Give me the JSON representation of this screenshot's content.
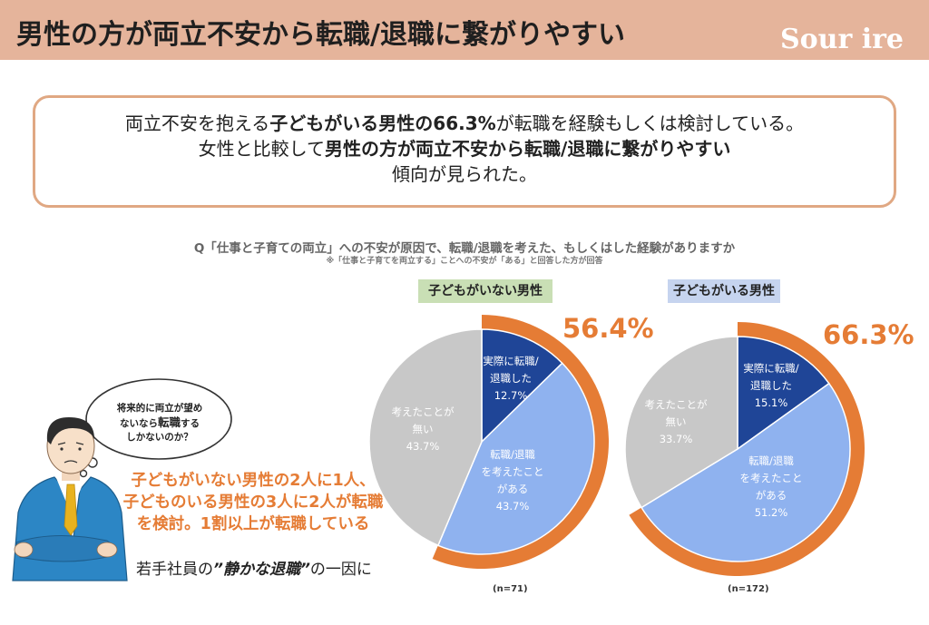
{
  "header": {
    "title": "男性の方が両立不安から転職/退職に繋がりやすい",
    "logo": "Sour ire"
  },
  "summary": {
    "line1": [
      {
        "text": "両立不安を抱える",
        "bold": false
      },
      {
        "text": "子どもがいる男性の66.3%",
        "bold": true
      },
      {
        "text": "が転職を経験もしくは検討している。",
        "bold": false
      }
    ],
    "line2": [
      {
        "text": "女性と比較して",
        "bold": false
      },
      {
        "text": "男性の方が両立不安から転職/退職に繋がりやすい",
        "bold": true
      }
    ],
    "line3": [
      {
        "text": "傾向が見られた。",
        "bold": false
      }
    ]
  },
  "question": {
    "text": "Q「仕事と子育ての両立」への不安が原因で、転職/退職を考えた、もしくはした経験がありますか",
    "note": "※「仕事と子育てを両立する」ことへの不安が「ある」と回答した方が回答"
  },
  "callout": {
    "lines": [
      "子どもがいない男性の2人に1人、",
      "子どものいる男性の3人に2人が転職",
      "を検討。1割以上が転職している"
    ]
  },
  "quote": {
    "before": "若手社員の",
    "bold": "”静かな退職”",
    "after": "の一因に"
  },
  "bubble": {
    "line1": "将来的に両立が望め",
    "line2_before": "ないなら",
    "line2_emph": "転職",
    "line2_after": "する",
    "line3": "しかないのか？"
  },
  "colors": {
    "header_bg": "#e5b49b",
    "accent_orange": "#e57c35",
    "slice_actual": "#1f4597",
    "slice_considered": "#8fb2ef",
    "slice_none": "#c8c8c8"
  },
  "chart_data": [
    {
      "type": "pie",
      "title": "子どもがいない男性",
      "highlight_label": "56.4%",
      "n_label": "(n=71)",
      "slices": [
        {
          "name": "実際に転職/退職した",
          "label_lines": [
            "実際に転職/",
            "退職した",
            "12.7%"
          ],
          "value": 12.7,
          "color": "#1f4597"
        },
        {
          "name": "転職/退職を考えたことがある",
          "label_lines": [
            "転職/退職",
            "を考えたこと",
            "がある",
            "43.7%"
          ],
          "value": 43.7,
          "color": "#8fb2ef"
        },
        {
          "name": "考えたことが無い",
          "label_lines": [
            "考えたことが",
            "無い",
            "43.7%"
          ],
          "value": 43.7,
          "color": "#c8c8c8"
        }
      ]
    },
    {
      "type": "pie",
      "title": "子どもがいる男性",
      "highlight_label": "66.3%",
      "n_label": "(n=172)",
      "slices": [
        {
          "name": "実際に転職/退職した",
          "label_lines": [
            "実際に転職/",
            "退職した",
            "15.1%"
          ],
          "value": 15.1,
          "color": "#1f4597"
        },
        {
          "name": "転職/退職を考えたことがある",
          "label_lines": [
            "転職/退職",
            "を考えたこと",
            "がある",
            "51.2%"
          ],
          "value": 51.2,
          "color": "#8fb2ef"
        },
        {
          "name": "考えたことが無い",
          "label_lines": [
            "考えたことが",
            "無い",
            "33.7%"
          ],
          "value": 33.7,
          "color": "#c8c8c8"
        }
      ]
    }
  ]
}
